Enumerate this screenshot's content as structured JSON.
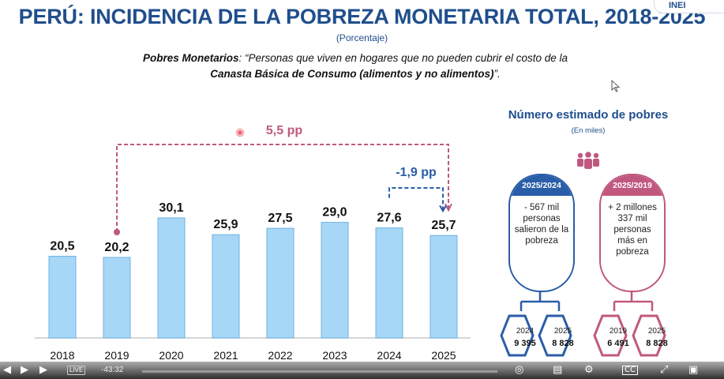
{
  "title": "PERÚ: INCIDENCIA DE LA POBREZA MONETARIA TOTAL, 2018-2025",
  "subtitle": "(Porcentaje)",
  "definition": {
    "term": "Pobres Monetarios",
    "text_line1": ": “Personas que viven en hogares que no pueden cubrir el costo de la",
    "text_line2": "Canasta Básica de Consumo (alimentos y no alimentos)",
    "text_end": "”."
  },
  "logo_text": "INEI",
  "chart_data": {
    "type": "bar",
    "categories": [
      "2018",
      "2019",
      "2020",
      "2021",
      "2022",
      "2023",
      "2024",
      "2025"
    ],
    "values": [
      20.5,
      20.2,
      30.1,
      25.9,
      27.5,
      29.0,
      27.6,
      25.7
    ],
    "value_labels": [
      "20,5",
      "20,2",
      "30,1",
      "25,9",
      "27,5",
      "29,0",
      "27,6",
      "25,7"
    ],
    "ylim": [
      0,
      35
    ],
    "grid": false,
    "annotations": [
      {
        "label": "5,5 pp",
        "from": "2019",
        "to": "2025",
        "color": "#c0587e"
      },
      {
        "label": "-1,9 pp",
        "from": "2024",
        "to": "2025",
        "color": "#2a5da8"
      }
    ]
  },
  "colors": {
    "bar_fill": "#a7d7f6",
    "bar_stroke": "#6fb2e3",
    "title": "#1f4e8c",
    "pink": "#c0587e",
    "blue": "#2a5da8"
  },
  "right_panel": {
    "title": "Número estimado de pobres",
    "subtitle": "(En miles)",
    "icon": "people-group-icon",
    "card_blue": {
      "header": "2025/2024",
      "body": "- 567 mil personas salieron de la pobreza",
      "hexes": [
        {
          "year": "2024",
          "value": "9 395"
        },
        {
          "year": "2025",
          "value": "8 828"
        }
      ]
    },
    "card_pink": {
      "header": "2025/2019",
      "body": "+ 2 millones 337 mil personas más en pobreza",
      "hexes": [
        {
          "year": "2019",
          "value": "6 491"
        },
        {
          "year": "2025",
          "value": "8 828"
        }
      ]
    }
  },
  "player": {
    "live_label": "LIVE",
    "time": "-43:32"
  }
}
